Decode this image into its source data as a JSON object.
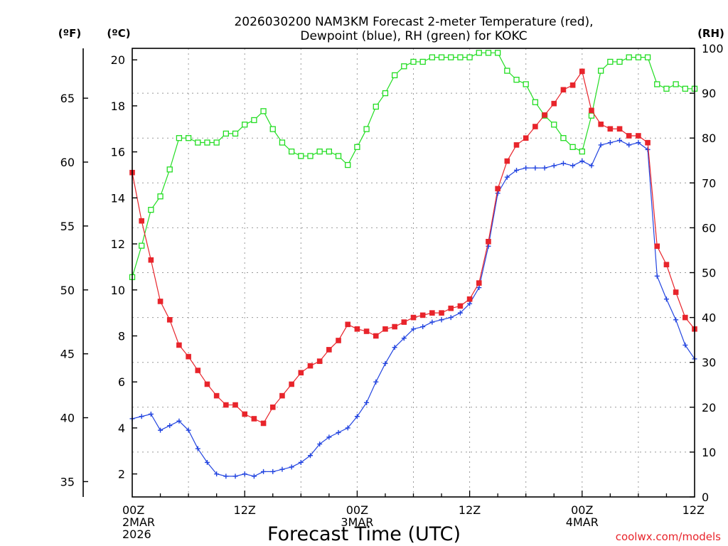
{
  "chart_data": {
    "type": "line",
    "title_line1": "2026030200 NAM3KM Forecast 2-meter Temperature (red),",
    "title_line2": "Dewpoint (blue), RH (green) for KOKC",
    "xlabel": "Forecast Time (UTC)",
    "left_outer_label": "(ºF)",
    "left_inner_label": "(ºC)",
    "right_label": "(RH)",
    "credit": "coolwx.com/models",
    "x_range_hours": [
      0,
      60
    ],
    "ylim_c": [
      1,
      20.5
    ],
    "ylim_rh": [
      0,
      100
    ],
    "ylim_f": [
      33.8,
      68.9
    ],
    "y_ticks_c": [
      "2",
      "4",
      "6",
      "8",
      "10",
      "12",
      "14",
      "16",
      "18",
      "20"
    ],
    "y_ticks_f": [
      "35",
      "40",
      "45",
      "50",
      "55",
      "60",
      "65"
    ],
    "y_ticks_rh": [
      "0",
      "10",
      "20",
      "30",
      "40",
      "50",
      "60",
      "70",
      "80",
      "90",
      "100"
    ],
    "x_ticks": [
      {
        "hour": 0,
        "line1": "00Z",
        "line2": "2MAR",
        "line3": "2026"
      },
      {
        "hour": 12,
        "line1": "12Z",
        "line2": "",
        "line3": ""
      },
      {
        "hour": 24,
        "line1": "00Z",
        "line2": "3MAR",
        "line3": ""
      },
      {
        "hour": 36,
        "line1": "12Z",
        "line2": "",
        "line3": ""
      },
      {
        "hour": 48,
        "line1": "00Z",
        "line2": "4MAR",
        "line3": ""
      },
      {
        "hour": 60,
        "line1": "12Z",
        "line2": "",
        "line3": ""
      }
    ],
    "hours": [
      0,
      1,
      2,
      3,
      4,
      5,
      6,
      7,
      8,
      9,
      10,
      11,
      12,
      13,
      14,
      15,
      16,
      17,
      18,
      19,
      20,
      21,
      22,
      23,
      24,
      25,
      26,
      27,
      28,
      29,
      30,
      31,
      32,
      33,
      34,
      35,
      36,
      37,
      38,
      39,
      40,
      41,
      42,
      43,
      44,
      45,
      46,
      47,
      48,
      49,
      50,
      51,
      52,
      53,
      54,
      55,
      56,
      57,
      58,
      59,
      60
    ],
    "series": [
      {
        "name": "Temperature (°C)",
        "axis": "c",
        "color": "#e8242b",
        "marker": "filled-square",
        "values": [
          15.1,
          13.0,
          11.3,
          9.5,
          8.7,
          7.6,
          7.1,
          6.5,
          5.9,
          5.4,
          5.0,
          5.0,
          4.6,
          4.4,
          4.2,
          4.9,
          5.4,
          5.9,
          6.4,
          6.7,
          6.9,
          7.4,
          7.8,
          8.5,
          8.3,
          8.2,
          8.0,
          8.3,
          8.4,
          8.6,
          8.8,
          8.9,
          9.0,
          9.0,
          9.2,
          9.3,
          9.6,
          10.3,
          12.1,
          14.4,
          15.6,
          16.3,
          16.6,
          17.1,
          17.6,
          18.1,
          18.7,
          18.9,
          19.5,
          17.8,
          17.2,
          17.0,
          17.0,
          16.7,
          16.7,
          16.4,
          11.9,
          11.1,
          9.9,
          8.8,
          8.3
        ]
      },
      {
        "name": "Dewpoint (°C)",
        "axis": "c",
        "color": "#2244e0",
        "marker": "plus",
        "values": [
          4.4,
          4.5,
          4.6,
          3.9,
          4.1,
          4.3,
          3.9,
          3.1,
          2.5,
          2.0,
          1.9,
          1.9,
          2.0,
          1.9,
          2.1,
          2.1,
          2.2,
          2.3,
          2.5,
          2.8,
          3.3,
          3.6,
          3.8,
          4.0,
          4.5,
          5.1,
          6.0,
          6.8,
          7.5,
          7.9,
          8.3,
          8.4,
          8.6,
          8.7,
          8.8,
          9.0,
          9.4,
          10.1,
          11.9,
          14.2,
          14.9,
          15.2,
          15.3,
          15.3,
          15.3,
          15.4,
          15.5,
          15.4,
          15.6,
          15.4,
          16.3,
          16.4,
          16.5,
          16.3,
          16.4,
          16.1,
          10.6,
          9.6,
          8.7,
          7.6,
          7.0
        ]
      },
      {
        "name": "RH (%)",
        "axis": "rh",
        "color": "#22dd22",
        "marker": "open-square",
        "values": [
          49,
          56,
          64,
          67,
          73,
          80,
          80,
          79,
          79,
          79,
          81,
          81,
          83,
          84,
          86,
          82,
          79,
          77,
          76,
          76,
          77,
          77,
          76,
          74,
          78,
          82,
          87,
          90,
          94,
          96,
          97,
          97,
          98,
          98,
          98,
          98,
          98,
          99,
          99,
          99,
          95,
          93,
          92,
          88,
          85,
          83,
          80,
          78,
          77,
          85,
          95,
          97,
          97,
          98,
          98,
          98,
          92,
          91,
          92,
          91,
          91
        ]
      }
    ]
  }
}
